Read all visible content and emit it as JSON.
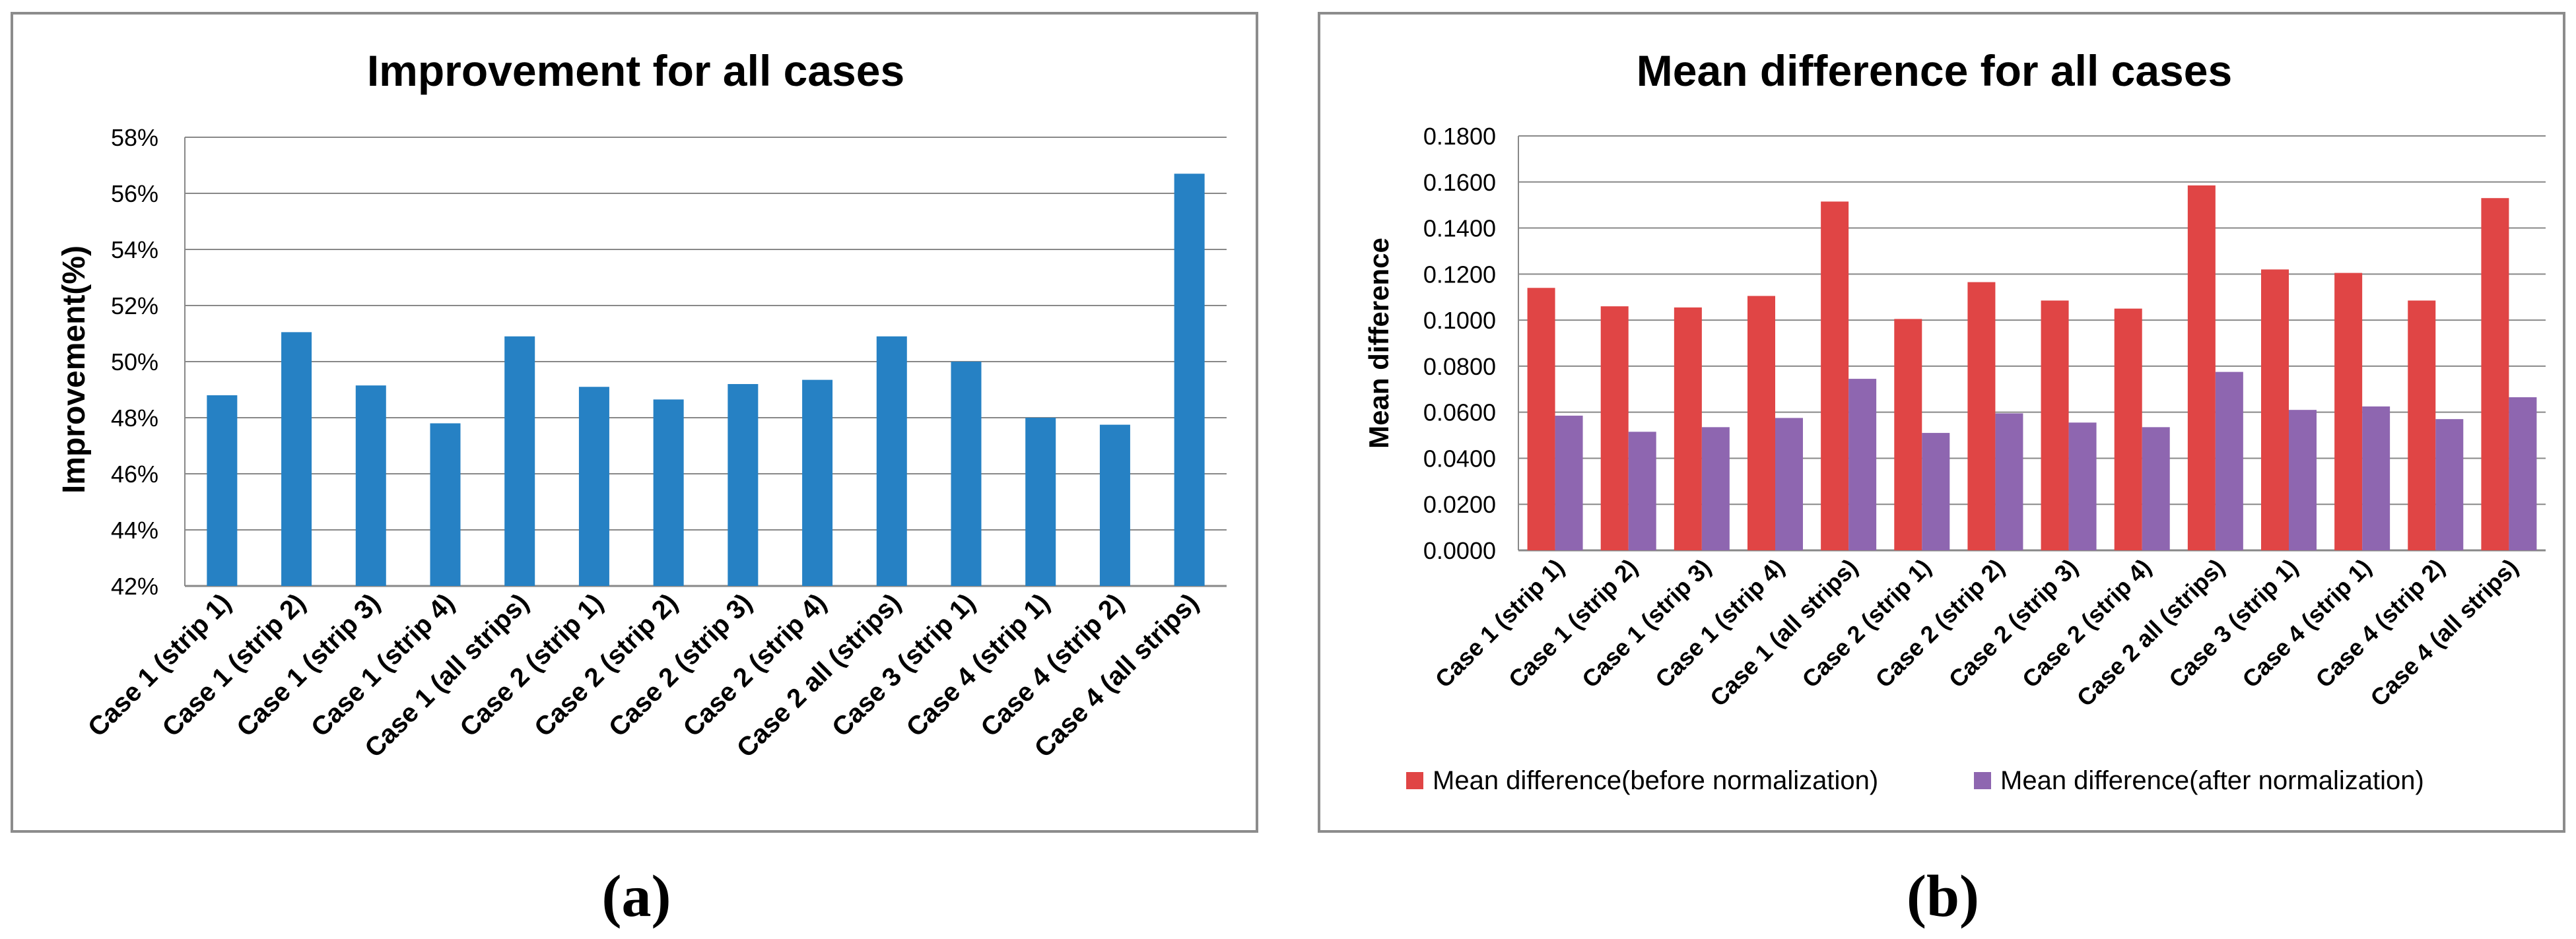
{
  "colors": {
    "bar_a": "#2681c4",
    "before": "#e04545",
    "after": "#8e66b0",
    "grid": "#888888",
    "frame": "#8c8c8c"
  },
  "chart_data": [
    {
      "id": "a",
      "type": "bar",
      "title": "Improvement for all cases",
      "xlabel": "",
      "ylabel": "Improvement(%)",
      "ylim": [
        42,
        58
      ],
      "yticks": [
        "42%",
        "44%",
        "46%",
        "48%",
        "50%",
        "52%",
        "54%",
        "56%",
        "58%"
      ],
      "categories": [
        "Case 1 (strip 1)",
        "Case 1 (strip 2)",
        "Case 1 (strip 3)",
        "Case 1 (strip 4)",
        "Case 1 (all strips)",
        "Case 2 (strip 1)",
        "Case 2 (strip 2)",
        "Case 2 (strip 3)",
        "Case 2 (strip 4)",
        "Case 2 all (strips)",
        "Case 3 (strip 1)",
        "Case 4 (strip 1)",
        "Case 4 (strip 2)",
        "Case 4 (all strips)"
      ],
      "series": [
        {
          "name": "Improvement",
          "values": [
            48.8,
            51.05,
            49.15,
            47.8,
            50.9,
            49.1,
            48.65,
            49.2,
            49.35,
            50.9,
            50.0,
            48.0,
            47.75,
            56.7
          ]
        }
      ],
      "legend": "none",
      "grid": true,
      "panel_label": "(a)"
    },
    {
      "id": "b",
      "type": "bar",
      "title": "Mean difference for all cases",
      "xlabel": "",
      "ylabel": "Mean difference",
      "ylim": [
        0,
        0.18
      ],
      "yticks": [
        "0.0000",
        "0.0200",
        "0.0400",
        "0.0600",
        "0.0800",
        "0.1000",
        "0.1200",
        "0.1400",
        "0.1600",
        "0.1800"
      ],
      "categories": [
        "Case 1 (strip 1)",
        "Case 1 (strip 2)",
        "Case 1 (strip 3)",
        "Case 1 (strip 4)",
        "Case 1 (all strips)",
        "Case 2 (strip 1)",
        "Case 2 (strip 2)",
        "Case 2 (strip 3)",
        "Case 2 (strip 4)",
        "Case 2 all (strips)",
        "Case 3 (strip 1)",
        "Case 4 (strip 1)",
        "Case 4 (strip 2)",
        "Case 4 (all strips)"
      ],
      "series": [
        {
          "name": "Mean difference(before normalization)",
          "values": [
            0.114,
            0.106,
            0.1055,
            0.1105,
            0.1515,
            0.1005,
            0.1165,
            0.1085,
            0.105,
            0.1585,
            0.122,
            0.1205,
            0.1085,
            0.153
          ]
        },
        {
          "name": "Mean difference(after normalization)",
          "values": [
            0.0585,
            0.0515,
            0.0535,
            0.0575,
            0.0745,
            0.051,
            0.0595,
            0.0555,
            0.0535,
            0.0775,
            0.061,
            0.0625,
            0.057,
            0.0665
          ]
        }
      ],
      "legend": "bottom",
      "grid": true,
      "panel_label": "(b)"
    }
  ]
}
